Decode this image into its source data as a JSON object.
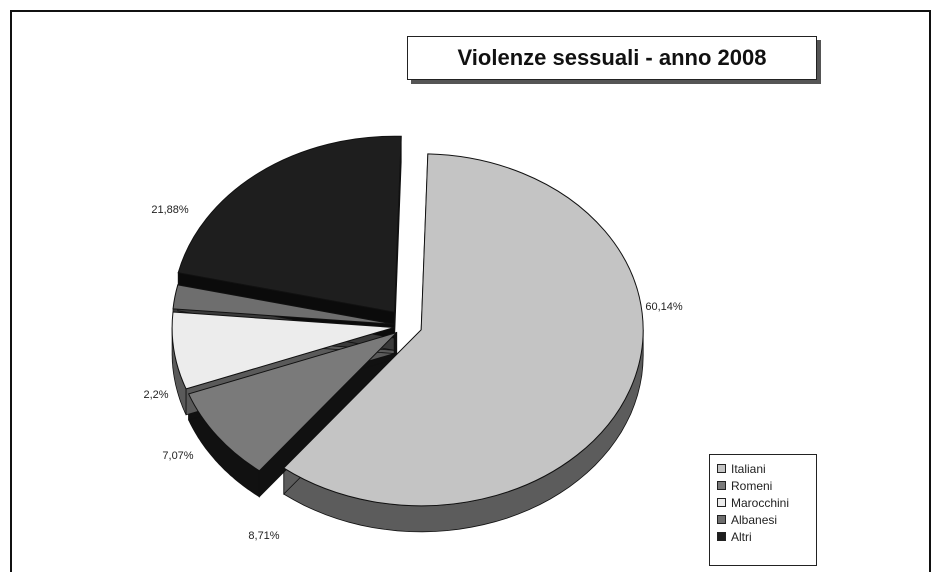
{
  "chart_data": {
    "type": "pie",
    "title": "Violenze sessuali - anno 2008",
    "categories": [
      "Italiani",
      "Romeni",
      "Marocchini",
      "Albanesi",
      "Altri"
    ],
    "values": [
      60.14,
      8.71,
      7.07,
      2.2,
      21.88
    ],
    "value_labels": [
      "60,14%",
      "8,71%",
      "7,07%",
      "2,2%",
      "21,88%"
    ],
    "exploded": true,
    "three_d": true,
    "legend_position": "bottom-right",
    "colors": [
      "#c4c4c4",
      "#7a7a7a",
      "#ececec",
      "#6e6e6e",
      "#1e1e1e"
    ],
    "side_colors": [
      "#5c5c5c",
      "#111111",
      "#5a5a5a",
      "#3a3a3a",
      "#0b0b0b"
    ]
  }
}
